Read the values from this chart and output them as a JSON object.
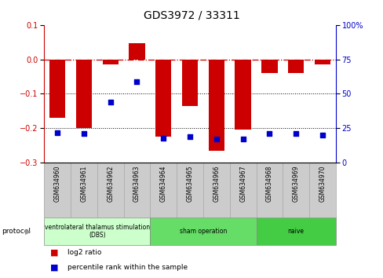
{
  "title": "GDS3972 / 33311",
  "samples": [
    "GSM634960",
    "GSM634961",
    "GSM634962",
    "GSM634963",
    "GSM634964",
    "GSM634965",
    "GSM634966",
    "GSM634967",
    "GSM634968",
    "GSM634969",
    "GSM634970"
  ],
  "log2_ratio": [
    -0.17,
    -0.2,
    -0.015,
    0.048,
    -0.225,
    -0.135,
    -0.265,
    -0.205,
    -0.04,
    -0.04,
    -0.015
  ],
  "percentile_rank": [
    22,
    21,
    44,
    59,
    18,
    19,
    17,
    17,
    21,
    21,
    20
  ],
  "bar_color": "#cc0000",
  "dot_color": "#0000cc",
  "ylim_left": [
    -0.3,
    0.1
  ],
  "ylim_right": [
    0,
    100
  ],
  "yticks_left": [
    -0.3,
    -0.2,
    -0.1,
    0.0,
    0.1
  ],
  "yticks_right": [
    0,
    25,
    50,
    75,
    100
  ],
  "hline_y": 0.0,
  "dotted_lines": [
    -0.1,
    -0.2
  ],
  "groups": [
    {
      "label": "ventrolateral thalamus stimulation\n(DBS)",
      "start": 0,
      "end": 3,
      "color": "#ccffcc"
    },
    {
      "label": "sham operation",
      "start": 4,
      "end": 7,
      "color": "#66dd66"
    },
    {
      "label": "naive",
      "start": 8,
      "end": 10,
      "color": "#44cc44"
    }
  ],
  "protocol_label": "protocol",
  "legend_items": [
    {
      "color": "#cc0000",
      "label": "log2 ratio"
    },
    {
      "color": "#0000cc",
      "label": "percentile rank within the sample"
    }
  ],
  "bg_color": "#ffffff",
  "plot_bg": "#ffffff",
  "title_fontsize": 10,
  "tick_fontsize": 7,
  "label_fontsize": 7,
  "sample_box_color": "#cccccc",
  "sample_box_edge": "#aaaaaa"
}
